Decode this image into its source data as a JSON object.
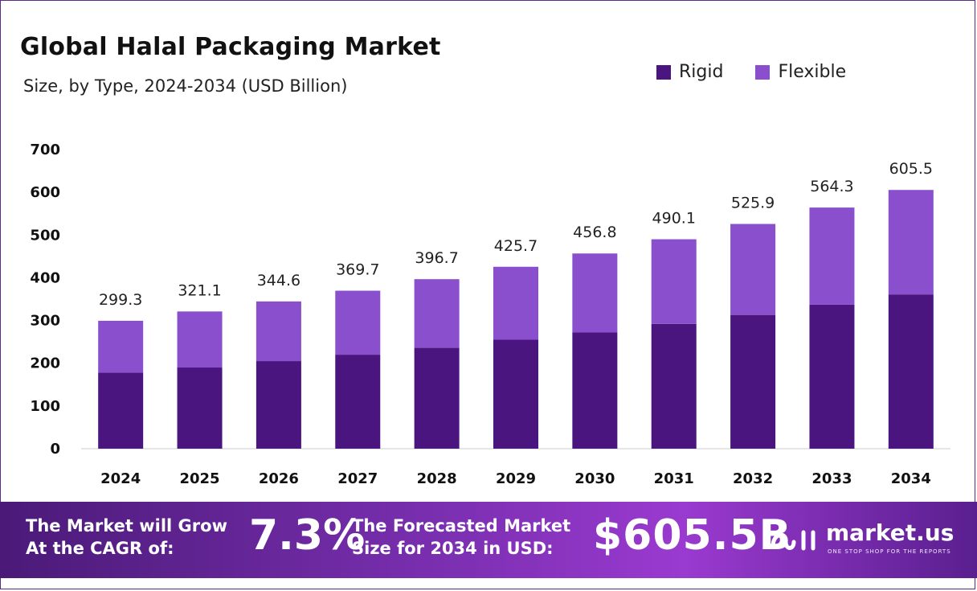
{
  "header": {
    "title": "Global Halal Packaging Market",
    "subtitle": "Size, by Type, 2024-2034 (USD Billion)"
  },
  "legend": {
    "rigid_label": "Rigid",
    "flexible_label": "Flexible"
  },
  "colors": {
    "rigid": "#4b1580",
    "flexible": "#8a4fcc",
    "axis_line": "#cccccc"
  },
  "chart_data": {
    "type": "bar",
    "stacked": true,
    "categories": [
      "2024",
      "2025",
      "2026",
      "2027",
      "2028",
      "2029",
      "2030",
      "2031",
      "2032",
      "2033",
      "2034"
    ],
    "series": [
      {
        "name": "Rigid",
        "values": [
          178,
          190,
          205,
          220,
          236,
          255,
          272,
          292,
          313,
          337,
          361
        ]
      },
      {
        "name": "Flexible",
        "values": [
          121.3,
          131.1,
          139.6,
          149.7,
          160.7,
          170.7,
          184.8,
          198.1,
          212.9,
          227.3,
          244.5
        ]
      }
    ],
    "totals": [
      "299.3",
      "321.1",
      "344.6",
      "369.7",
      "396.7",
      "425.7",
      "456.8",
      "490.1",
      "525.9",
      "564.3",
      "605.5"
    ],
    "total_values": [
      299.3,
      321.1,
      344.6,
      369.7,
      396.7,
      425.7,
      456.8,
      490.1,
      525.9,
      564.3,
      605.5
    ],
    "yticks": [
      "0",
      "100",
      "200",
      "300",
      "400",
      "500",
      "600",
      "700"
    ],
    "ylim": [
      0,
      700
    ],
    "grid": false,
    "legend_position": "top-right"
  },
  "banner": {
    "cagr_label": "The Market will Grow At the CAGR of:",
    "cagr_value": "7.3%",
    "forecast_label": "The Forecasted Market Size for 2034 in USD:",
    "forecast_value": "$605.5B",
    "brand_name": "market.us",
    "brand_tagline": "ONE STOP SHOP FOR THE REPORTS",
    "brand_icon": "market-us-logo-icon"
  }
}
